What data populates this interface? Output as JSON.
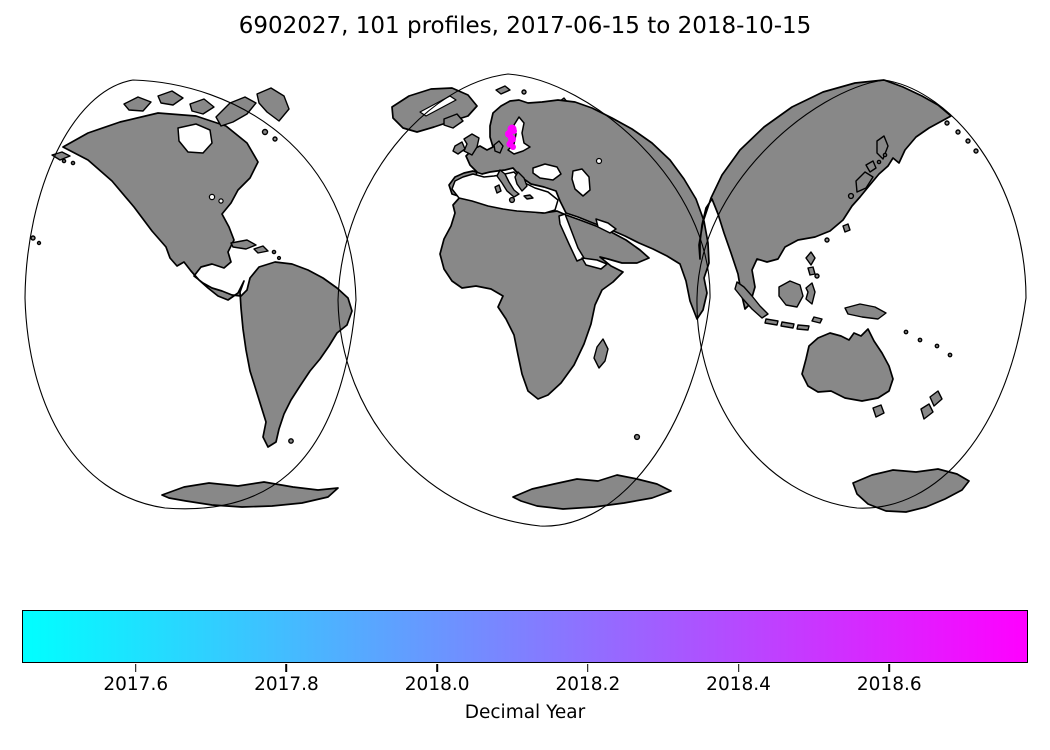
{
  "title": "6902027, 101 profiles, 2017-06-15 to 2018-10-15",
  "map": {
    "type": "world-coastline-map",
    "projection": "interrupted three-lobe (Goode-homolosine style)",
    "land_color": "#888888",
    "ocean_color": "#ffffff",
    "coastline_color": "#000000",
    "profiles": {
      "count": 101,
      "marker_color": "#ff00ff",
      "location": "Baltic Sea"
    }
  },
  "colorbar": {
    "label": "Decimal Year",
    "colormap": "cool",
    "start_color": "#00ffff",
    "end_color": "#ff00ff",
    "ticks": [
      {
        "label": "2017.6",
        "pos_pct": 11.23
      },
      {
        "label": "2017.8",
        "pos_pct": 26.24
      },
      {
        "label": "2018.0",
        "pos_pct": 41.25
      },
      {
        "label": "2018.2",
        "pos_pct": 56.26
      },
      {
        "label": "2018.4",
        "pos_pct": 71.27
      },
      {
        "label": "2018.6",
        "pos_pct": 86.28
      }
    ]
  },
  "chart_data": {
    "type": "scatter",
    "title": "6902027, 101 profiles, 2017-06-15 to 2018-10-15",
    "float_id": "6902027",
    "n_profiles": 101,
    "date_start": "2017-06-15",
    "date_end": "2018-10-15",
    "points_location": {
      "region": "Baltic Sea",
      "approx_lat": 57,
      "approx_lon": 19
    },
    "color_scale": {
      "label": "Decimal Year",
      "min": 2017.45,
      "max": 2018.79,
      "ticks": [
        2017.6,
        2017.8,
        2018.0,
        2018.2,
        2018.4,
        2018.6
      ],
      "colormap": "cool (cyan to magenta)"
    },
    "legend_position": "bottom horizontal colorbar",
    "grid": false
  }
}
